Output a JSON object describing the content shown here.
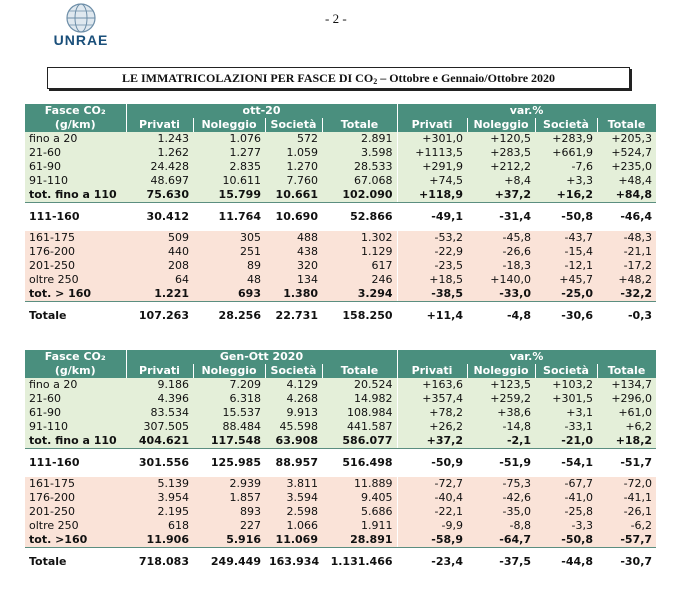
{
  "header": {
    "logo_text": "UNRAE",
    "page_number": "- 2 -",
    "title_main": "LE IMMATRICOLAZIONI PER FASCE DI CO",
    "title_sub": "2",
    "title_rest": " – Ottobre e Gennaio/Ottobre 2020"
  },
  "table1": {
    "band_label": "Fasce CO₂",
    "band_unit": "(g/km)",
    "group1": "ott-20",
    "group2": "var.%",
    "columns": [
      "Privati",
      "Noleggio",
      "Società",
      "Totale",
      "Privati",
      "Noleggio",
      "Società",
      "Totale"
    ],
    "rows": [
      {
        "label": "fino a 20",
        "v": [
          "1.243",
          "1.076",
          "572",
          "2.891",
          "+301,0",
          "+120,5",
          "+283,9",
          "+205,3"
        ]
      },
      {
        "label": "21-60",
        "v": [
          "1.262",
          "1.277",
          "1.059",
          "3.598",
          "+1113,5",
          "+283,5",
          "+661,9",
          "+524,7"
        ]
      },
      {
        "label": "61-90",
        "v": [
          "24.428",
          "2.835",
          "1.270",
          "28.533",
          "+291,9",
          "+212,2",
          "-7,6",
          "+235,0"
        ]
      },
      {
        "label": "91-110",
        "v": [
          "48.697",
          "10.611",
          "7.760",
          "67.068",
          "+74,5",
          "+8,4",
          "+3,3",
          "+48,4"
        ]
      },
      {
        "label": "tot. fino a 110",
        "v": [
          "75.630",
          "15.799",
          "10.661",
          "102.090",
          "+118,9",
          "+37,2",
          "+16,2",
          "+84,8"
        ]
      },
      {
        "label": "111-160",
        "v": [
          "30.412",
          "11.764",
          "10.690",
          "52.866",
          "-49,1",
          "-31,4",
          "-50,8",
          "-46,4"
        ]
      },
      {
        "label": "161-175",
        "v": [
          "509",
          "305",
          "488",
          "1.302",
          "-53,2",
          "-45,8",
          "-43,7",
          "-48,3"
        ]
      },
      {
        "label": "176-200",
        "v": [
          "440",
          "251",
          "438",
          "1.129",
          "-22,9",
          "-26,6",
          "-15,4",
          "-21,1"
        ]
      },
      {
        "label": "201-250",
        "v": [
          "208",
          "89",
          "320",
          "617",
          "-23,5",
          "-18,3",
          "-12,1",
          "-17,2"
        ]
      },
      {
        "label": "oltre 250",
        "v": [
          "64",
          "48",
          "134",
          "246",
          "+18,5",
          "+140,0",
          "+45,7",
          "+48,2"
        ]
      },
      {
        "label": "tot. > 160",
        "v": [
          "1.221",
          "693",
          "1.380",
          "3.294",
          "-38,5",
          "-33,0",
          "-25,0",
          "-32,2"
        ]
      },
      {
        "label": "Totale",
        "v": [
          "107.263",
          "28.256",
          "22.731",
          "158.250",
          "+11,4",
          "-4,8",
          "-30,6",
          "-0,3"
        ]
      }
    ]
  },
  "table2": {
    "band_label": "Fasce CO₂",
    "band_unit": "(g/km)",
    "group1": "Gen-Ott 2020",
    "group2": "var.%",
    "columns": [
      "Privati",
      "Noleggio",
      "Società",
      "Totale",
      "Privati",
      "Noleggio",
      "Società",
      "Totale"
    ],
    "rows": [
      {
        "label": "fino a 20",
        "v": [
          "9.186",
          "7.209",
          "4.129",
          "20.524",
          "+163,6",
          "+123,5",
          "+103,2",
          "+134,7"
        ]
      },
      {
        "label": "21-60",
        "v": [
          "4.396",
          "6.318",
          "4.268",
          "14.982",
          "+357,4",
          "+259,2",
          "+301,5",
          "+296,0"
        ]
      },
      {
        "label": "61-90",
        "v": [
          "83.534",
          "15.537",
          "9.913",
          "108.984",
          "+78,2",
          "+38,6",
          "+3,1",
          "+61,0"
        ]
      },
      {
        "label": "91-110",
        "v": [
          "307.505",
          "88.484",
          "45.598",
          "441.587",
          "+26,2",
          "-14,8",
          "-33,1",
          "+6,2"
        ]
      },
      {
        "label": "tot. fino a 110",
        "v": [
          "404.621",
          "117.548",
          "63.908",
          "586.077",
          "+37,2",
          "-2,1",
          "-21,0",
          "+18,2"
        ]
      },
      {
        "label": "111-160",
        "v": [
          "301.556",
          "125.985",
          "88.957",
          "516.498",
          "-50,9",
          "-51,9",
          "-54,1",
          "-51,7"
        ]
      },
      {
        "label": "161-175",
        "v": [
          "5.139",
          "2.939",
          "3.811",
          "11.889",
          "-72,7",
          "-75,3",
          "-67,7",
          "-72,0"
        ]
      },
      {
        "label": "176-200",
        "v": [
          "3.954",
          "1.857",
          "3.594",
          "9.405",
          "-40,4",
          "-42,6",
          "-41,0",
          "-41,1"
        ]
      },
      {
        "label": "201-250",
        "v": [
          "2.195",
          "893",
          "2.598",
          "5.686",
          "-22,1",
          "-35,0",
          "-25,8",
          "-26,1"
        ]
      },
      {
        "label": "oltre 250",
        "v": [
          "618",
          "227",
          "1.066",
          "1.911",
          "-9,9",
          "-8,8",
          "-3,3",
          "-6,2"
        ]
      },
      {
        "label": "tot. >160",
        "v": [
          "11.906",
          "5.916",
          "11.069",
          "28.891",
          "-58,9",
          "-64,7",
          "-50,8",
          "-57,7"
        ]
      },
      {
        "label": "Totale",
        "v": [
          "718.083",
          "249.449",
          "163.934",
          "1.131.466",
          "-23,4",
          "-37,5",
          "-44,8",
          "-30,7"
        ]
      }
    ]
  },
  "colors": {
    "header_bg": "#4a8f7e",
    "low_band_bg": "#e4efd9",
    "high_band_bg": "#fae3d8"
  }
}
